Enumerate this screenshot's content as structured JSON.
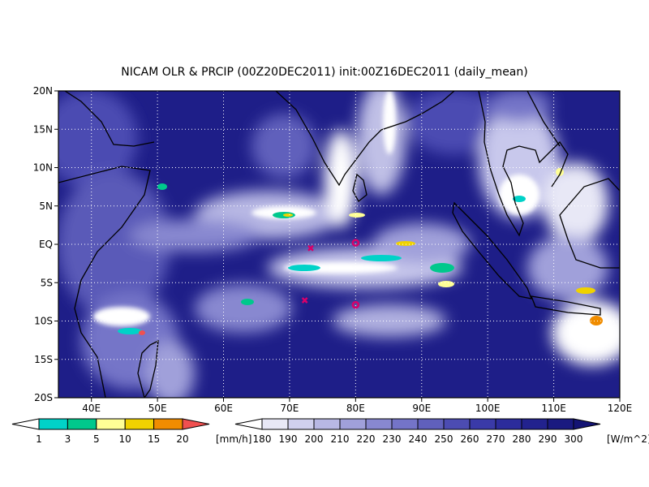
{
  "map": {
    "title": "NICAM OLR & PRCIP (00Z20DEC2011) init:00Z16DEC2011 (daily_mean)",
    "xlim": [
      35,
      120
    ],
    "ylim": [
      -20,
      20
    ],
    "xticks": [
      {
        "value": 40,
        "label": "40E"
      },
      {
        "value": 50,
        "label": "50E"
      },
      {
        "value": 60,
        "label": "60E"
      },
      {
        "value": 70,
        "label": "70E"
      },
      {
        "value": 80,
        "label": "80E"
      },
      {
        "value": 90,
        "label": "90E"
      },
      {
        "value": 100,
        "label": "100E"
      },
      {
        "value": 110,
        "label": "110E"
      },
      {
        "value": 120,
        "label": "120E"
      }
    ],
    "yticks": [
      {
        "value": -20,
        "label": "20S"
      },
      {
        "value": -15,
        "label": "15S"
      },
      {
        "value": -10,
        "label": "10S"
      },
      {
        "value": -5,
        "label": "5S"
      },
      {
        "value": 0,
        "label": "EQ"
      },
      {
        "value": 5,
        "label": "5N"
      },
      {
        "value": 10,
        "label": "10N"
      },
      {
        "value": 15,
        "label": "15N"
      },
      {
        "value": 20,
        "label": "20N"
      }
    ],
    "grid": true,
    "markers": [
      {
        "symbol": "x",
        "lon": 73.2,
        "lat": -0.5,
        "color": "#d8006a"
      },
      {
        "symbol": "x",
        "lon": 72.3,
        "lat": -7.3,
        "color": "#d8006a"
      },
      {
        "symbol": "o",
        "lon": 80,
        "lat": 0.2,
        "color": "#d8006a"
      },
      {
        "symbol": "o",
        "lon": 80,
        "lat": -7.9,
        "color": "#d8006a"
      }
    ]
  },
  "precip_colorbar": {
    "levels": [
      1,
      3,
      5,
      10,
      15,
      20
    ],
    "colors": [
      "#ffffff",
      "#00d2c8",
      "#00c88c",
      "#ffff96",
      "#f0d200",
      "#f08c00",
      "#f05050"
    ],
    "unit": "[mm/h]"
  },
  "olr_colorbar": {
    "levels": [
      180,
      190,
      200,
      210,
      220,
      230,
      240,
      250,
      260,
      270,
      280,
      290,
      300
    ],
    "colors": [
      "#ffffff",
      "#e8e8f6",
      "#d0d0ee",
      "#b8b8e4",
      "#a0a0da",
      "#8888d0",
      "#7474c8",
      "#6060bc",
      "#4c4cb2",
      "#3a3aa8",
      "#2c2c9c",
      "#22228e",
      "#1a1a80",
      "#141474"
    ],
    "unit": "[W/m^2]"
  }
}
